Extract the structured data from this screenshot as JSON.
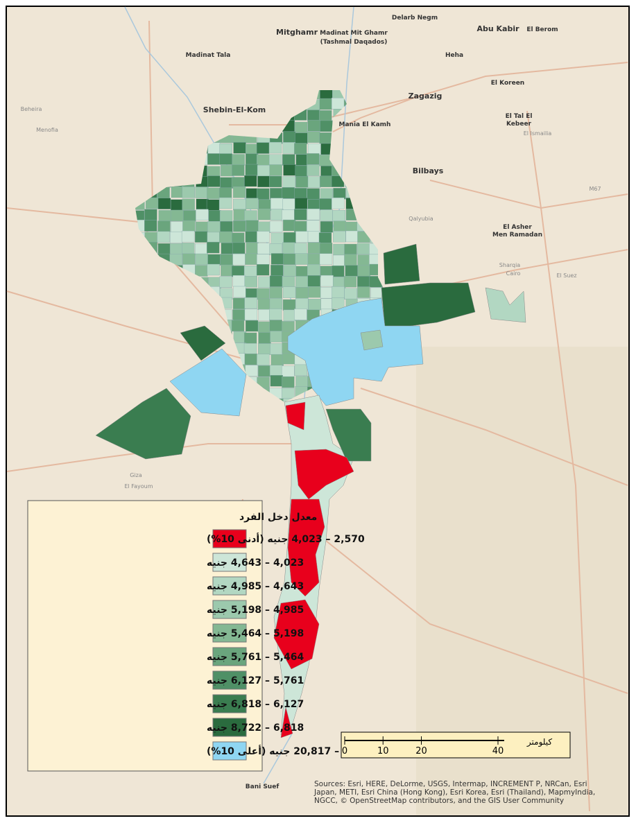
{
  "places": [
    "Delarb Negm",
    "Mitghamr",
    "Madinat Mit Ghamr",
    "(Tashmal Daqados)",
    "Abu Kabir",
    "El Berom",
    "Madinat Tala",
    "Heha",
    "El Koreen",
    "Zagazig",
    "Shebin-El-Kom",
    "Mania El Kamh",
    "El Tal El",
    "Kebeer",
    "Bilbays",
    "El Asher",
    "Men Ramadan",
    "Giza",
    "El Fayoum",
    "Bani Suef",
    "Menofia",
    "Beheira",
    "Qalyubia",
    "Sharqia",
    "Cairo",
    "El Ismailia",
    "El Suez",
    "M67"
  ],
  "legend": {
    "title": "معدل دخل الفرد",
    "items": [
      {
        "label": "2,570 – 4,023 جنيه (أدنى 10%)",
        "color": "#e8001c"
      },
      {
        "label": "4,023 – 4,643 جنيه",
        "color": "#cde6d8"
      },
      {
        "label": "4,643 – 4,985 جنيه",
        "color": "#b2d7c2"
      },
      {
        "label": "4,985 – 5,198 جنيه",
        "color": "#9cc9ad"
      },
      {
        "label": "5,198 – 5,464 جنيه",
        "color": "#84b893"
      },
      {
        "label": "5,464 – 5,761 جنيه",
        "color": "#6aa57d"
      },
      {
        "label": "5,761 – 6,127 جنيه",
        "color": "#4f9066"
      },
      {
        "label": "6,127 – 6,818 جنيه",
        "color": "#3a7d50"
      },
      {
        "label": "6,818 – 8,722 جنيه",
        "color": "#2a6b3e"
      },
      {
        "label": "8,722 – 20,817 جنيه (أعلى 10%)",
        "color": "#8fd6f2"
      }
    ]
  },
  "scale_bar": {
    "ticks": [
      0,
      10,
      20,
      40
    ],
    "unit": "كيلومتر"
  },
  "sources": [
    "Sources: Esri, HERE, DeLorme, USGS, Intermap, INCREMENT P, NRCan, Esri",
    "Japan, METI, Esri China (Hong Kong), Esri Korea, Esri (Thailand), MapmyIndia,",
    "NGCC, © OpenStreetMap contributors, and the GIS User Community"
  ]
}
